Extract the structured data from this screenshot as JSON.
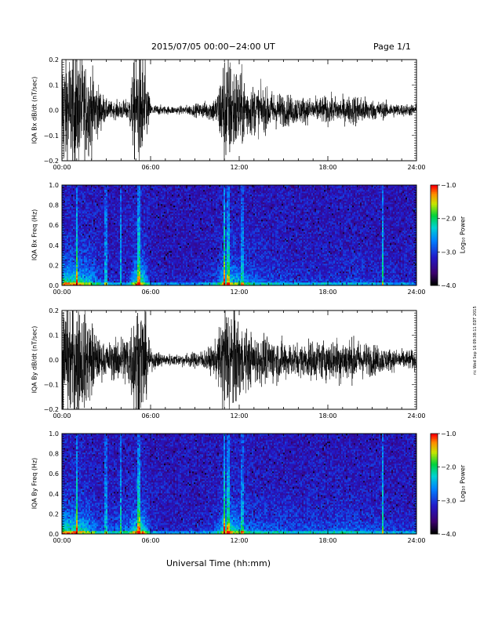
{
  "header": {
    "title": "2015/07/05  00:00−24:00 UT",
    "page": "Page 1/1"
  },
  "xaxis_title": "Universal Time (hh:mm)",
  "stamp": "ric Wed Sep 16 09:38:11 EDT 2015",
  "colorbar": {
    "title": "Log₁₀ Power",
    "ticks": [
      "−1.0",
      "−2.0",
      "−3.0",
      "−4.0"
    ],
    "values": [
      -1.0,
      -2.0,
      -3.0,
      -4.0
    ]
  },
  "chart_data": [
    {
      "type": "line",
      "ylabel": "IQA Bx dB/dt (nT/sec)",
      "ylim": [
        -0.2,
        0.2
      ],
      "yticks": [
        "0.2",
        "0.1",
        "0.0",
        "−0.1",
        "−0.2"
      ],
      "ytick_values": [
        0.2,
        0.1,
        0.0,
        -0.1,
        -0.2
      ],
      "xlim": [
        "00:00",
        "24:00"
      ],
      "xticks": [
        "00:00",
        "06:00",
        "12:00",
        "18:00",
        "24:00"
      ],
      "amplitude_envelope": {
        "hours": [
          0,
          0.5,
          1,
          1.5,
          2,
          2.5,
          3,
          3.5,
          4,
          4.5,
          5,
          5.5,
          6,
          7,
          8,
          9,
          10,
          10.5,
          11,
          11.5,
          12,
          12.5,
          13,
          14,
          15,
          16,
          17,
          18,
          19,
          20,
          21,
          22,
          23,
          24
        ],
        "nT_per_sec": [
          0.3,
          0.3,
          0.3,
          0.25,
          0.2,
          0.12,
          0.05,
          0.04,
          0.05,
          0.05,
          0.3,
          0.3,
          0.03,
          0.02,
          0.02,
          0.03,
          0.05,
          0.08,
          0.3,
          0.25,
          0.2,
          0.15,
          0.12,
          0.1,
          0.08,
          0.07,
          0.06,
          0.07,
          0.06,
          0.08,
          0.05,
          0.04,
          0.03,
          0.03
        ]
      }
    },
    {
      "type": "heatmap",
      "ylabel": "IQA Bx Freq (Hz)",
      "ylim": [
        0.0,
        1.0
      ],
      "yticks": [
        "1.0",
        "0.8",
        "0.6",
        "0.4",
        "0.2",
        "0.0"
      ],
      "ytick_values": [
        1.0,
        0.8,
        0.6,
        0.4,
        0.2,
        0.0
      ],
      "xlim": [
        "00:00",
        "24:00"
      ],
      "xticks": [
        "00:00",
        "06:00",
        "12:00",
        "18:00",
        "24:00"
      ],
      "zlim": [
        -4.0,
        -1.0
      ],
      "zlabel": "Log₁₀ Power"
    },
    {
      "type": "line",
      "ylabel": "IQA By dB/dt (nT/sec)",
      "ylim": [
        -0.2,
        0.2
      ],
      "yticks": [
        "0.2",
        "0.1",
        "0.0",
        "−0.1",
        "−0.2"
      ],
      "ytick_values": [
        0.2,
        0.1,
        0.0,
        -0.1,
        -0.2
      ],
      "xlim": [
        "00:00",
        "24:00"
      ],
      "xticks": [
        "00:00",
        "06:00",
        "12:00",
        "18:00",
        "24:00"
      ],
      "amplitude_envelope": {
        "hours": [
          0,
          0.5,
          1,
          1.5,
          2,
          2.5,
          3,
          3.5,
          4,
          4.5,
          5,
          5.5,
          6,
          7,
          8,
          9,
          10,
          10.5,
          11,
          11.5,
          12,
          12.5,
          13,
          14,
          15,
          16,
          17,
          18,
          19,
          20,
          21,
          22,
          23,
          24
        ],
        "nT_per_sec": [
          0.3,
          0.3,
          0.3,
          0.25,
          0.2,
          0.1,
          0.08,
          0.1,
          0.12,
          0.15,
          0.3,
          0.3,
          0.05,
          0.03,
          0.03,
          0.04,
          0.06,
          0.1,
          0.3,
          0.3,
          0.2,
          0.15,
          0.12,
          0.12,
          0.1,
          0.08,
          0.1,
          0.1,
          0.12,
          0.1,
          0.08,
          0.06,
          0.05,
          0.05
        ]
      }
    },
    {
      "type": "heatmap",
      "ylabel": "IQA By Freq (Hz)",
      "ylim": [
        0.0,
        1.0
      ],
      "yticks": [
        "1.0",
        "0.8",
        "0.6",
        "0.4",
        "0.2",
        "0.0"
      ],
      "ytick_values": [
        1.0,
        0.8,
        0.6,
        0.4,
        0.2,
        0.0
      ],
      "xlim": [
        "00:00",
        "24:00"
      ],
      "xticks": [
        "00:00",
        "06:00",
        "12:00",
        "18:00",
        "24:00"
      ],
      "zlim": [
        -4.0,
        -1.0
      ],
      "zlabel": "Log₁₀ Power"
    }
  ]
}
